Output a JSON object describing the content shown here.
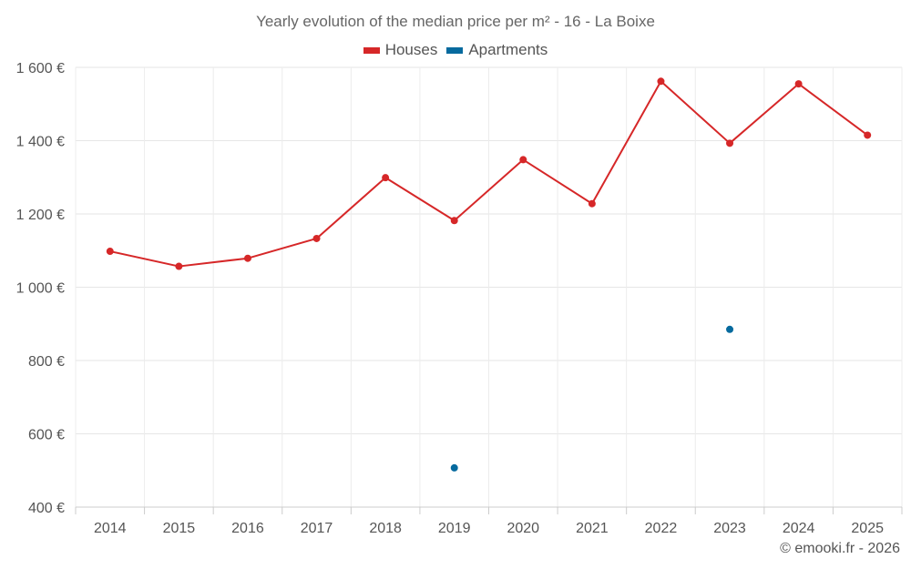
{
  "chart_data": {
    "type": "line",
    "title": "Yearly evolution of the median price per m² - 16 - La Boixe",
    "categories": [
      "2014",
      "2015",
      "2016",
      "2017",
      "2018",
      "2019",
      "2020",
      "2021",
      "2022",
      "2023",
      "2024",
      "2025"
    ],
    "series": [
      {
        "name": "Houses",
        "color": "#d62728",
        "values": [
          1098,
          1057,
          1079,
          1133,
          1299,
          1182,
          1348,
          1228,
          1562,
          1393,
          1555,
          1415
        ]
      },
      {
        "name": "Apartments",
        "color": "#066a9e",
        "values": [
          null,
          null,
          null,
          null,
          null,
          507,
          null,
          null,
          null,
          885,
          null,
          null
        ]
      }
    ],
    "ylim": [
      400,
      1600
    ],
    "yticks": [
      400,
      600,
      800,
      1000,
      1200,
      1400,
      1600
    ],
    "ytick_labels": [
      "400 €",
      "600 €",
      "800 €",
      "1 000 €",
      "1 200 €",
      "1 400 €",
      "1 600 €"
    ],
    "xlabel": "",
    "ylabel": "",
    "grid": true,
    "legend_position": "top-center"
  },
  "credit": "© emooki.fr - 2026"
}
